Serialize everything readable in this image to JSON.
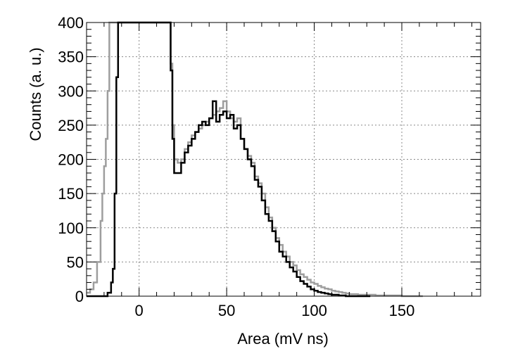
{
  "chart_data": {
    "type": "line",
    "title": "",
    "xlabel": "Area (mV ns)",
    "ylabel": "Counts (a. u.)",
    "xlim": [
      -30,
      195
    ],
    "ylim": [
      0,
      400
    ],
    "x_ticks": [
      0,
      50,
      100,
      150
    ],
    "y_ticks": [
      0,
      50,
      100,
      150,
      200,
      250,
      300,
      350,
      400
    ],
    "grid": true,
    "legend": "none",
    "step_style": "histogram",
    "series": [
      {
        "color": "#000000",
        "x": [
          -30,
          -20,
          -18,
          -16,
          -15,
          -14,
          -13,
          -12,
          -10,
          -5,
          0,
          5,
          10,
          15,
          16,
          17,
          18,
          19,
          20,
          22,
          24,
          26,
          28,
          30,
          32,
          34,
          36,
          38,
          40,
          42,
          44,
          46,
          48,
          50,
          52,
          54,
          56,
          58,
          60,
          62,
          64,
          66,
          68,
          70,
          72,
          74,
          76,
          78,
          80,
          82,
          84,
          86,
          88,
          90,
          92,
          94,
          96,
          98,
          100,
          102,
          104,
          106,
          108,
          110,
          112,
          114,
          116,
          118,
          120,
          125,
          130
        ],
        "values": [
          0,
          0,
          5,
          20,
          40,
          150,
          320,
          400,
          400,
          400,
          400,
          400,
          400,
          400,
          400,
          400,
          330,
          230,
          180,
          180,
          195,
          210,
          220,
          230,
          240,
          250,
          255,
          250,
          260,
          285,
          255,
          265,
          270,
          260,
          265,
          245,
          250,
          230,
          215,
          200,
          190,
          170,
          160,
          140,
          120,
          110,
          95,
          80,
          65,
          58,
          50,
          42,
          36,
          28,
          22,
          18,
          14,
          10,
          8,
          6,
          5,
          4,
          3,
          2,
          2,
          1,
          1,
          0,
          0,
          0,
          0
        ]
      },
      {
        "color": "#9e9e9e",
        "x": [
          -30,
          -28,
          -26,
          -24,
          -22,
          -21,
          -20,
          -19,
          -18,
          -17,
          -16,
          -14,
          -10,
          -5,
          0,
          5,
          10,
          15,
          17,
          18,
          19,
          20,
          22,
          24,
          26,
          28,
          30,
          32,
          34,
          36,
          38,
          40,
          42,
          44,
          46,
          48,
          50,
          52,
          54,
          56,
          58,
          60,
          62,
          64,
          66,
          68,
          70,
          72,
          74,
          76,
          78,
          80,
          82,
          84,
          86,
          88,
          90,
          92,
          94,
          96,
          98,
          100,
          102,
          104,
          106,
          108,
          110,
          112,
          114,
          116,
          118,
          120,
          125,
          130,
          135,
          140,
          145,
          150,
          155,
          160
        ],
        "values": [
          5,
          10,
          20,
          50,
          110,
          150,
          190,
          230,
          300,
          400,
          400,
          400,
          400,
          400,
          400,
          400,
          400,
          400,
          400,
          340,
          250,
          200,
          195,
          200,
          215,
          225,
          235,
          240,
          245,
          250,
          255,
          260,
          265,
          270,
          275,
          285,
          270,
          260,
          255,
          260,
          230,
          215,
          205,
          195,
          175,
          165,
          150,
          130,
          115,
          100,
          85,
          75,
          65,
          58,
          50,
          45,
          38,
          32,
          28,
          24,
          20,
          18,
          15,
          13,
          11,
          10,
          8,
          7,
          6,
          5,
          4,
          3,
          2,
          2,
          1,
          1,
          1,
          0,
          0,
          0
        ]
      }
    ]
  }
}
